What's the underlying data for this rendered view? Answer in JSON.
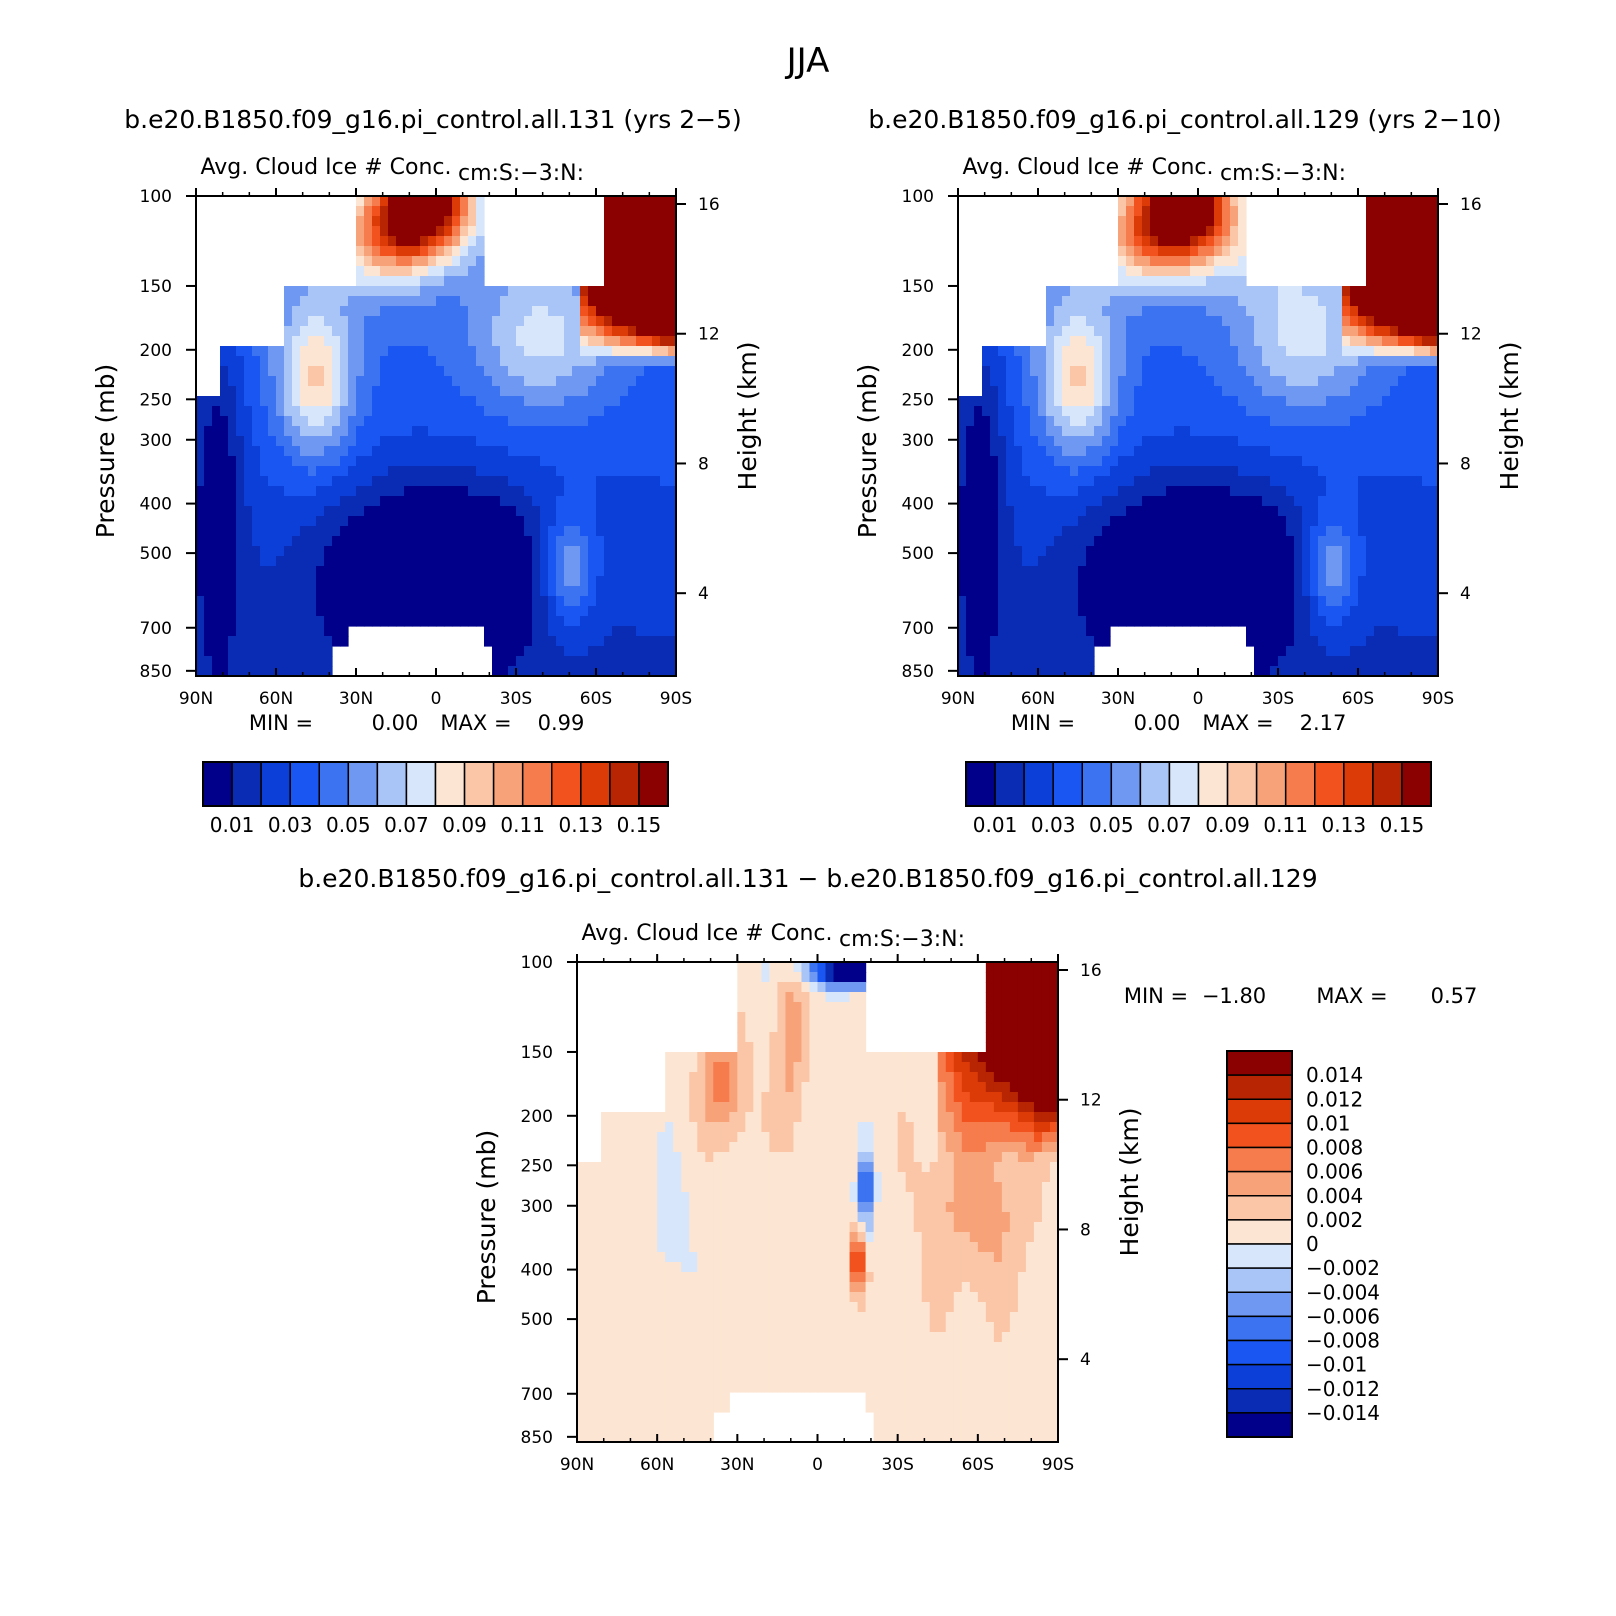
{
  "figure": {
    "season": "JJA",
    "title_left": "b.e20.B1850.f09_g16.pi_control.all.131 (yrs 2−5)",
    "title_right": "b.e20.B1850.f09_g16.pi_control.all.129 (yrs 2−10)",
    "title_diff": "b.e20.B1850.f09_g16.pi_control.all.131 − b.e20.B1850.f09_g16.pi_control.all.129"
  },
  "chart_data": [
    {
      "type": "heatmap",
      "id": "panel_131",
      "title": "Avg. Cloud Ice # Conc.",
      "units_label": "cm:S:−3:N:",
      "xlabel": "",
      "ylabel": "Pressure (mb)",
      "y2label": "Height (km)",
      "x_ticks": [
        "90N",
        "60N",
        "30N",
        "0",
        "30S",
        "60S",
        "90S"
      ],
      "y_ticks": [
        100,
        150,
        200,
        250,
        300,
        400,
        500,
        700,
        850
      ],
      "y2_ticks": [
        16,
        12,
        8,
        4
      ],
      "ylim": [
        850,
        100
      ],
      "min_label": "MIN =",
      "min_value": "0.00",
      "max_label": "MAX =",
      "max_value": "0.99",
      "colorbar_ticks": [
        "0.01",
        "0.03",
        "0.05",
        "0.07",
        "0.09",
        "0.11",
        "0.13",
        "0.15"
      ]
    },
    {
      "type": "heatmap",
      "id": "panel_129",
      "title": "Avg. Cloud Ice # Conc.",
      "units_label": "cm:S:−3:N:",
      "xlabel": "",
      "ylabel": "Pressure (mb)",
      "y2label": "Height (km)",
      "x_ticks": [
        "90N",
        "60N",
        "30N",
        "0",
        "30S",
        "60S",
        "90S"
      ],
      "y_ticks": [
        100,
        150,
        200,
        250,
        300,
        400,
        500,
        700,
        850
      ],
      "y2_ticks": [
        16,
        12,
        8,
        4
      ],
      "ylim": [
        850,
        100
      ],
      "min_label": "MIN =",
      "min_value": "0.00",
      "max_label": "MAX =",
      "max_value": "2.17",
      "colorbar_ticks": [
        "0.01",
        "0.03",
        "0.05",
        "0.07",
        "0.09",
        "0.11",
        "0.13",
        "0.15"
      ]
    },
    {
      "type": "heatmap",
      "id": "panel_diff",
      "title": "Avg. Cloud Ice # Conc.",
      "units_label": "cm:S:−3:N:",
      "xlabel": "",
      "ylabel": "Pressure (mb)",
      "y2label": "Height (km)",
      "x_ticks": [
        "90N",
        "60N",
        "30N",
        "0",
        "30S",
        "60S",
        "90S"
      ],
      "y_ticks": [
        100,
        150,
        200,
        250,
        300,
        400,
        500,
        700,
        850
      ],
      "y2_ticks": [
        16,
        12,
        8,
        4
      ],
      "ylim": [
        850,
        100
      ],
      "min_label": "MIN =",
      "min_value": "−1.80",
      "max_label": "MAX =",
      "max_value": "0.57",
      "colorbar_ticks": [
        "0.014",
        "0.012",
        "0.01",
        "0.008",
        "0.006",
        "0.004",
        "0.002",
        "0",
        "−0.002",
        "−0.004",
        "−0.006",
        "−0.008",
        "−0.01",
        "−0.012",
        "−0.014"
      ]
    }
  ],
  "colors": {
    "abs_scale": [
      "#00008b",
      "#0a2bb4",
      "#0b3fd7",
      "#1a56f2",
      "#3b73f0",
      "#6e98f2",
      "#a9c4f7",
      "#d7e6fb",
      "#fde5d3",
      "#fbc6a8",
      "#f8a279",
      "#f67c4d",
      "#f2531e",
      "#dc3a07",
      "#b72503",
      "#8b0000"
    ],
    "diff_scale": [
      "#00008b",
      "#0a2bb4",
      "#0b3fd7",
      "#1a56f2",
      "#3b73f0",
      "#6e98f2",
      "#a9c4f7",
      "#d7e6fb",
      "#fde5d3",
      "#fbc6a8",
      "#f8a279",
      "#f67c4d",
      "#f2531e",
      "#dc3a07",
      "#b72503",
      "#8b0000"
    ],
    "missing": "#ffffff"
  }
}
